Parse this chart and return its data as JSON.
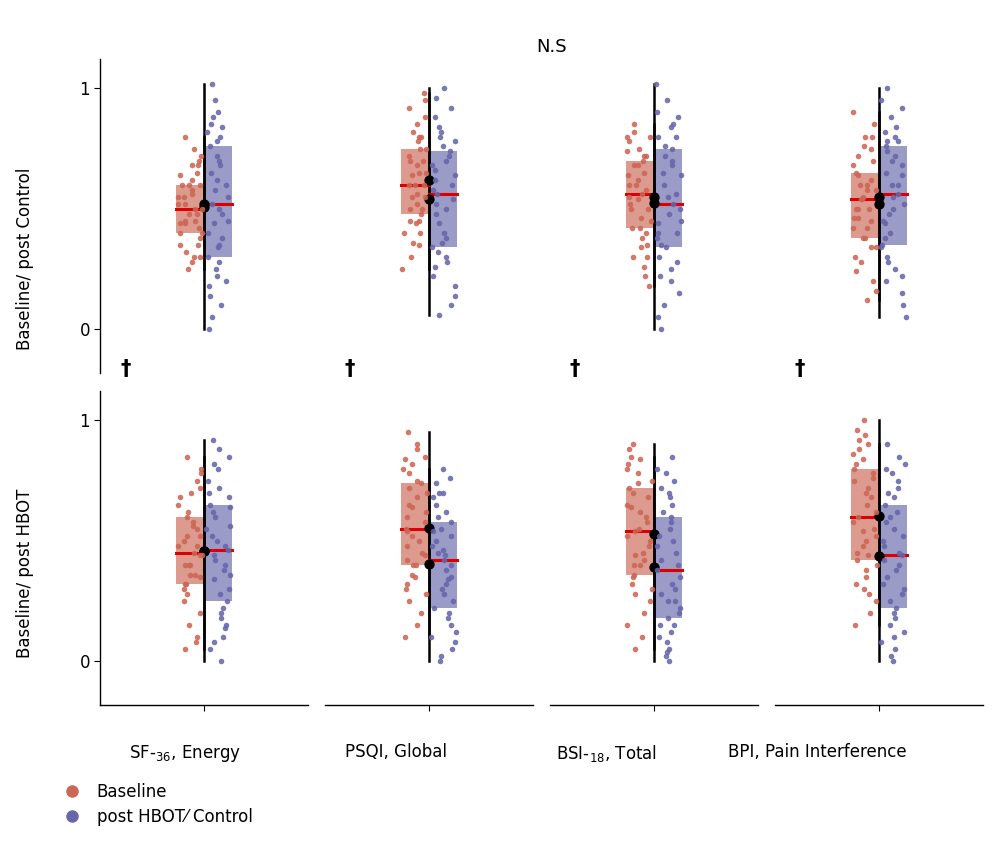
{
  "ns_label": "N.S",
  "dagger": "†",
  "row_labels": [
    "Baseline/ post Control",
    "Baseline/ post HBOT"
  ],
  "col_label_texts": [
    "SF-$_{36}$, Energy",
    "PSQI, Global",
    "BSI-$_{18}$, Total",
    "BPI, Pain Interference"
  ],
  "legend_labels": [
    "Baseline",
    "post HBOT⁄ Control"
  ],
  "baseline_color": "#cc6655",
  "post_color": "#6666aa",
  "baseline_fill": "#e8c4bb",
  "post_fill": "#c0c4e0",
  "median_color": "#dd0000",
  "ylim": [
    -0.18,
    1.12
  ],
  "yticks": [
    0.0,
    1.0
  ],
  "row0_show_ns": true,
  "row0_show_dagger": false,
  "row1_show_dagger": true,
  "r0c0_base": [
    0.62,
    0.55,
    0.5,
    0.45,
    0.42,
    0.38,
    0.35,
    0.3,
    0.68,
    0.6,
    0.58,
    0.52,
    0.48,
    0.44,
    0.4,
    0.32,
    0.28,
    0.25,
    0.7,
    0.65,
    0.6,
    0.55,
    0.5,
    0.45,
    0.4,
    0.35,
    0.3,
    0.72,
    0.68,
    0.64,
    0.6,
    0.56,
    0.52,
    0.48,
    0.44,
    0.75,
    0.8
  ],
  "r0c0_post": [
    0.78,
    0.82,
    0.68,
    0.72,
    0.62,
    0.58,
    0.52,
    0.48,
    0.44,
    0.88,
    0.84,
    0.8,
    0.76,
    0.7,
    0.65,
    0.6,
    0.55,
    0.5,
    0.45,
    0.4,
    0.35,
    0.3,
    0.22,
    0.18,
    0.14,
    0.1,
    0.05,
    0.0,
    1.02,
    0.95,
    0.9,
    0.85,
    0.38,
    0.34,
    0.28,
    0.25,
    0.2
  ],
  "r0c1_base": [
    0.8,
    0.75,
    0.7,
    0.65,
    0.6,
    0.55,
    0.5,
    0.45,
    0.4,
    0.85,
    0.8,
    0.75,
    0.7,
    0.65,
    0.6,
    0.55,
    0.5,
    0.45,
    0.72,
    0.68,
    0.64,
    0.6,
    0.56,
    0.52,
    0.48,
    0.44,
    0.78,
    0.82,
    0.88,
    0.92,
    0.95,
    0.98,
    0.35,
    0.3,
    0.25,
    0.4,
    0.36
  ],
  "r0c1_post": [
    0.82,
    0.78,
    0.74,
    0.7,
    0.66,
    0.62,
    0.58,
    0.54,
    0.5,
    0.72,
    0.68,
    0.64,
    0.6,
    0.56,
    0.52,
    0.48,
    0.44,
    0.4,
    0.36,
    0.32,
    0.28,
    0.88,
    0.84,
    0.8,
    0.76,
    0.92,
    0.96,
    1.0,
    0.38,
    0.34,
    0.3,
    0.26,
    0.22,
    0.18,
    0.14,
    0.1,
    0.06
  ],
  "r0c2_base": [
    0.7,
    0.65,
    0.6,
    0.55,
    0.5,
    0.45,
    0.4,
    0.75,
    0.8,
    0.42,
    0.38,
    0.34,
    0.3,
    0.62,
    0.58,
    0.54,
    0.5,
    0.46,
    0.42,
    0.68,
    0.64,
    0.6,
    0.56,
    0.52,
    0.72,
    0.8,
    0.85,
    0.78,
    0.74,
    0.82,
    0.26,
    0.22,
    0.18,
    0.35,
    0.3,
    0.68,
    0.72
  ],
  "r0c2_post": [
    0.65,
    0.7,
    0.75,
    0.8,
    0.55,
    0.5,
    0.45,
    0.4,
    0.35,
    0.3,
    0.25,
    0.2,
    0.68,
    0.64,
    0.6,
    0.56,
    0.52,
    0.48,
    0.44,
    0.4,
    0.88,
    0.84,
    0.8,
    0.76,
    0.72,
    1.02,
    0.95,
    0.9,
    0.85,
    0.38,
    0.34,
    0.28,
    0.15,
    0.1,
    0.05,
    0.0,
    0.22
  ],
  "r0c3_base": [
    0.85,
    0.8,
    0.75,
    0.7,
    0.65,
    0.6,
    0.55,
    0.5,
    0.45,
    0.9,
    0.42,
    0.38,
    0.34,
    0.3,
    0.58,
    0.54,
    0.5,
    0.46,
    0.42,
    0.38,
    0.34,
    0.62,
    0.58,
    0.54,
    0.5,
    0.46,
    0.68,
    0.64,
    0.6,
    0.72,
    0.76,
    0.8,
    0.28,
    0.24,
    0.2,
    0.16,
    0.12
  ],
  "r0c3_post": [
    0.82,
    0.78,
    0.74,
    0.7,
    0.88,
    0.84,
    0.8,
    0.76,
    0.65,
    0.6,
    0.55,
    0.5,
    0.45,
    0.4,
    0.35,
    0.3,
    0.25,
    0.2,
    0.72,
    0.68,
    0.64,
    0.6,
    0.56,
    0.52,
    0.48,
    0.44,
    0.78,
    0.92,
    0.95,
    1.0,
    0.38,
    0.34,
    0.28,
    0.22,
    0.15,
    0.1,
    0.05
  ],
  "r1c0_base": [
    0.5,
    0.45,
    0.4,
    0.35,
    0.3,
    0.55,
    0.6,
    0.65,
    0.7,
    0.25,
    0.2,
    0.15,
    0.48,
    0.44,
    0.4,
    0.36,
    0.32,
    0.28,
    0.52,
    0.48,
    0.44,
    0.4,
    0.36,
    0.32,
    0.56,
    0.52,
    0.75,
    0.8,
    0.85,
    0.1,
    0.08,
    0.05,
    0.58,
    0.62,
    0.68,
    0.72,
    0.78
  ],
  "r1c0_post": [
    0.75,
    0.8,
    0.82,
    0.85,
    0.88,
    0.72,
    0.68,
    0.64,
    0.6,
    0.56,
    0.52,
    0.48,
    0.44,
    0.4,
    0.36,
    0.3,
    0.25,
    0.2,
    0.15,
    0.1,
    0.05,
    0.0,
    0.38,
    0.34,
    0.28,
    0.22,
    0.18,
    0.14,
    0.08,
    0.42,
    0.46,
    0.5,
    0.55,
    0.62,
    0.65,
    0.7,
    0.92
  ],
  "r1c1_base": [
    0.8,
    0.75,
    0.7,
    0.65,
    0.6,
    0.55,
    0.5,
    0.45,
    0.85,
    0.9,
    0.95,
    0.4,
    0.35,
    0.3,
    0.25,
    0.48,
    0.44,
    0.4,
    0.52,
    0.58,
    0.54,
    0.62,
    0.68,
    0.64,
    0.72,
    0.78,
    0.74,
    0.82,
    0.88,
    0.84,
    0.2,
    0.15,
    0.1,
    0.36,
    0.32,
    0.28,
    0.42
  ],
  "r1c1_post": [
    0.55,
    0.5,
    0.45,
    0.4,
    0.35,
    0.3,
    0.25,
    0.6,
    0.65,
    0.7,
    0.2,
    0.15,
    0.1,
    0.05,
    0.0,
    0.38,
    0.34,
    0.44,
    0.48,
    0.52,
    0.58,
    0.54,
    0.62,
    0.68,
    0.74,
    0.7,
    0.76,
    0.8,
    0.28,
    0.22,
    0.18,
    0.12,
    0.08,
    0.02,
    0.42,
    0.46,
    0.32
  ],
  "r1c2_base": [
    0.75,
    0.7,
    0.65,
    0.6,
    0.55,
    0.5,
    0.45,
    0.4,
    0.35,
    0.8,
    0.85,
    0.3,
    0.25,
    0.48,
    0.44,
    0.4,
    0.52,
    0.58,
    0.54,
    0.62,
    0.68,
    0.64,
    0.72,
    0.78,
    0.74,
    0.82,
    0.88,
    0.84,
    0.2,
    0.15,
    0.1,
    0.05,
    0.36,
    0.32,
    0.28,
    0.42,
    0.9
  ],
  "r1c2_post": [
    0.4,
    0.35,
    0.3,
    0.25,
    0.2,
    0.15,
    0.1,
    0.05,
    0.0,
    0.45,
    0.5,
    0.55,
    0.6,
    0.65,
    0.7,
    0.08,
    0.04,
    0.12,
    0.18,
    0.22,
    0.28,
    0.32,
    0.38,
    0.42,
    0.48,
    0.52,
    0.58,
    0.62,
    0.68,
    0.72,
    0.78,
    0.75,
    0.8,
    0.85,
    0.02,
    0.15,
    0.25
  ],
  "r1c3_base": [
    0.88,
    0.84,
    0.8,
    0.75,
    0.7,
    0.65,
    0.6,
    0.55,
    0.5,
    0.92,
    0.45,
    0.4,
    0.35,
    0.52,
    0.48,
    0.44,
    0.58,
    0.54,
    0.62,
    0.68,
    0.72,
    0.76,
    0.82,
    0.78,
    0.86,
    0.9,
    0.94,
    1.0,
    0.3,
    0.25,
    0.2,
    0.15,
    0.38,
    0.32,
    0.28,
    0.42,
    0.96
  ],
  "r1c3_post": [
    0.35,
    0.3,
    0.25,
    0.2,
    0.15,
    0.1,
    0.4,
    0.45,
    0.5,
    0.55,
    0.6,
    0.65,
    0.7,
    0.05,
    0.02,
    0.22,
    0.18,
    0.28,
    0.32,
    0.38,
    0.42,
    0.48,
    0.52,
    0.58,
    0.62,
    0.68,
    0.75,
    0.8,
    0.85,
    0.08,
    0.12,
    0.0,
    0.44,
    0.72,
    0.78,
    0.82,
    0.9
  ]
}
